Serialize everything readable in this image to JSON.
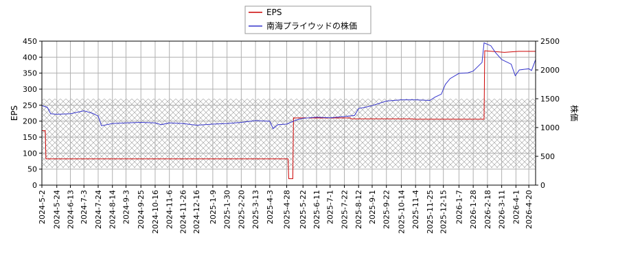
{
  "chart_data": {
    "type": "line",
    "legend": {
      "position": "top-center",
      "entries": [
        {
          "name": "EPS",
          "color": "#cc0000"
        },
        {
          "name": "南海プライウッドの株価",
          "color": "#3333cc"
        }
      ]
    },
    "ylabel_left": "EPS",
    "ylabel_right": "株価",
    "ylim_left": [
      0,
      450
    ],
    "ylim_right": [
      0,
      2500
    ],
    "yticks_left": [
      0,
      50,
      100,
      150,
      200,
      250,
      300,
      350,
      400,
      450
    ],
    "yticks_right": [
      0,
      500,
      1000,
      1500,
      2000,
      2500
    ],
    "grid": true,
    "x_start": "2024-05-02",
    "x_end": "2026-04-30",
    "x_tick_labels": [
      "2024-5-2",
      "2024-5-24",
      "2024-6-13",
      "2024-7-3",
      "2024-7-24",
      "2024-8-14",
      "2024-9-3",
      "2024-9-25",
      "2024-10-16",
      "2024-11-6",
      "2024-11-26",
      "2024-12-16",
      "2025-1-9",
      "2025-1-30",
      "2025-2-20",
      "2025-3-13",
      "2025-4-3",
      "2025-4-28",
      "2025-5-22",
      "2025-6-11",
      "2025-7-1",
      "2025-7-22",
      "2025-8-12",
      "2025-9-1",
      "2025-9-22",
      "2025-10-14",
      "2025-11-4",
      "2025-11-25",
      "2025-12-15",
      "2026-1-7",
      "2026-1-28",
      "2026-2-18",
      "2026-3-11",
      "2026-4-1",
      "2026-4-20"
    ],
    "hatch_band_right": [
      300,
      1500
    ],
    "series": [
      {
        "name": "EPS",
        "axis": "left",
        "color": "#cc0000",
        "step": true,
        "points": [
          [
            "2024-05-02",
            170
          ],
          [
            "2024-05-07",
            170
          ],
          [
            "2024-05-08",
            82
          ],
          [
            "2025-04-30",
            82
          ],
          [
            "2025-05-01",
            20
          ],
          [
            "2025-05-07",
            20
          ],
          [
            "2025-05-08",
            210
          ],
          [
            "2025-07-31",
            210
          ],
          [
            "2025-08-01",
            207
          ],
          [
            "2025-10-31",
            207
          ],
          [
            "2025-11-01",
            206
          ],
          [
            "2026-02-13",
            206
          ],
          [
            "2026-02-14",
            420
          ],
          [
            "2026-03-15",
            415
          ],
          [
            "2026-04-05",
            418
          ],
          [
            "2026-04-30",
            418
          ]
        ]
      },
      {
        "name": "南海プライウッドの株価",
        "axis": "right",
        "color": "#3333cc",
        "step": false,
        "points": [
          [
            "2024-05-02",
            1380
          ],
          [
            "2024-05-10",
            1350
          ],
          [
            "2024-05-15",
            1240
          ],
          [
            "2024-05-24",
            1230
          ],
          [
            "2024-06-13",
            1240
          ],
          [
            "2024-07-03",
            1290
          ],
          [
            "2024-07-15",
            1250
          ],
          [
            "2024-07-24",
            1200
          ],
          [
            "2024-07-29",
            1030
          ],
          [
            "2024-08-14",
            1070
          ],
          [
            "2024-09-03",
            1080
          ],
          [
            "2024-09-25",
            1090
          ],
          [
            "2024-10-16",
            1080
          ],
          [
            "2024-10-25",
            1050
          ],
          [
            "2024-11-06",
            1080
          ],
          [
            "2024-11-26",
            1070
          ],
          [
            "2024-12-16",
            1040
          ],
          [
            "2025-01-09",
            1060
          ],
          [
            "2025-01-30",
            1070
          ],
          [
            "2025-02-20",
            1090
          ],
          [
            "2025-03-13",
            1120
          ],
          [
            "2025-04-03",
            1110
          ],
          [
            "2025-04-08",
            980
          ],
          [
            "2025-04-15",
            1050
          ],
          [
            "2025-04-28",
            1060
          ],
          [
            "2025-05-12",
            1130
          ],
          [
            "2025-05-22",
            1160
          ],
          [
            "2025-06-11",
            1180
          ],
          [
            "2025-07-01",
            1170
          ],
          [
            "2025-07-22",
            1190
          ],
          [
            "2025-08-06",
            1210
          ],
          [
            "2025-08-12",
            1330
          ],
          [
            "2025-08-25",
            1360
          ],
          [
            "2025-09-01",
            1380
          ],
          [
            "2025-09-22",
            1460
          ],
          [
            "2025-10-14",
            1480
          ],
          [
            "2025-11-04",
            1480
          ],
          [
            "2025-11-25",
            1470
          ],
          [
            "2025-12-03",
            1530
          ],
          [
            "2025-12-12",
            1580
          ],
          [
            "2025-12-18",
            1750
          ],
          [
            "2025-12-25",
            1850
          ],
          [
            "2026-01-07",
            1940
          ],
          [
            "2026-01-20",
            1950
          ],
          [
            "2026-01-28",
            1980
          ],
          [
            "2026-02-10",
            2130
          ],
          [
            "2026-02-13",
            2470
          ],
          [
            "2026-02-23",
            2420
          ],
          [
            "2026-03-02",
            2300
          ],
          [
            "2026-03-11",
            2180
          ],
          [
            "2026-03-25",
            2100
          ],
          [
            "2026-03-31",
            1900
          ],
          [
            "2026-04-06",
            2000
          ],
          [
            "2026-04-20",
            2020
          ],
          [
            "2026-04-24",
            1990
          ],
          [
            "2026-04-30",
            2180
          ]
        ]
      }
    ]
  }
}
